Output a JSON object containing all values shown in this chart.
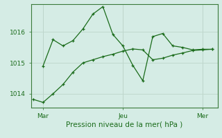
{
  "xlabel": "Pression niveau de la mer( hPa )",
  "background_color": "#d5ece5",
  "grid_color": "#c0d8ce",
  "line_color": "#1a6b1a",
  "tick_color": "#1a6b1a",
  "label_color": "#1a6b1a",
  "spine_color": "#3a7a3a",
  "x_ticks_pos": [
    1,
    9,
    17
  ],
  "x_ticks_labels": [
    "Mar",
    "Jeu",
    "Mer"
  ],
  "ylim": [
    1013.55,
    1016.9
  ],
  "yticks": [
    1014,
    1015,
    1016
  ],
  "series1_x": [
    0,
    1,
    2,
    3,
    4,
    5,
    6,
    7,
    8,
    9,
    10,
    11,
    12,
    13,
    14,
    15,
    16,
    17,
    18
  ],
  "series1_y": [
    1013.82,
    1013.72,
    1014.0,
    1014.3,
    1014.7,
    1015.0,
    1015.1,
    1015.2,
    1015.28,
    1015.38,
    1015.45,
    1015.42,
    1015.1,
    1015.15,
    1015.25,
    1015.32,
    1015.4,
    1015.42,
    1015.44
  ],
  "series2_x": [
    1,
    2,
    3,
    4,
    5,
    6,
    7,
    8,
    9,
    10,
    11,
    12,
    13,
    14,
    15,
    16,
    17,
    18
  ],
  "series2_y": [
    1014.9,
    1015.75,
    1015.55,
    1015.72,
    1016.1,
    1016.58,
    1016.82,
    1015.92,
    1015.55,
    1014.92,
    1014.42,
    1015.85,
    1015.95,
    1015.55,
    1015.5,
    1015.42,
    1015.44,
    1015.44
  ]
}
